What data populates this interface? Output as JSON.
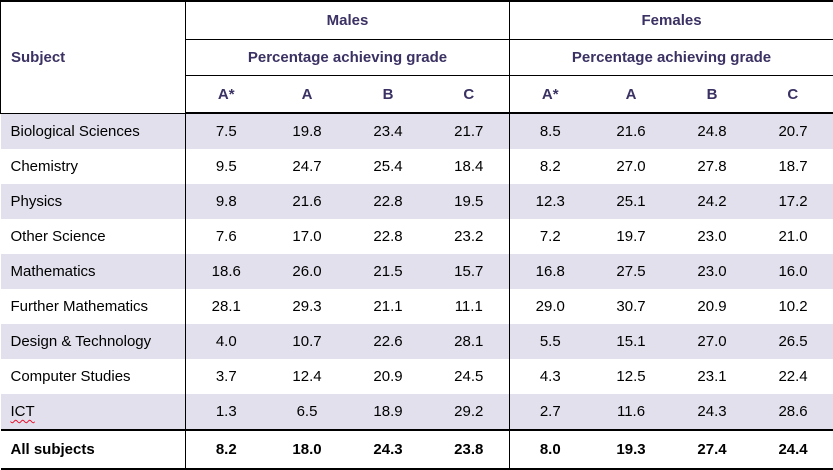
{
  "table": {
    "subject_header": "Subject",
    "male_group": {
      "label": "Males",
      "subheader": "Percentage achieving grade"
    },
    "female_group": {
      "label": "Females",
      "subheader": "Percentage achieving grade"
    },
    "grades": [
      "A*",
      "A",
      "B",
      "C"
    ],
    "rows": [
      {
        "subject": "Biological Sciences",
        "males": [
          "7.5",
          "19.8",
          "23.4",
          "21.7"
        ],
        "females": [
          "8.5",
          "21.6",
          "24.8",
          "20.7"
        ]
      },
      {
        "subject": "Chemistry",
        "males": [
          "9.5",
          "24.7",
          "25.4",
          "18.4"
        ],
        "females": [
          "8.2",
          "27.0",
          "27.8",
          "18.7"
        ]
      },
      {
        "subject": "Physics",
        "males": [
          "9.8",
          "21.6",
          "22.8",
          "19.5"
        ],
        "females": [
          "12.3",
          "25.1",
          "24.2",
          "17.2"
        ]
      },
      {
        "subject": "Other Science",
        "males": [
          "7.6",
          "17.0",
          "22.8",
          "23.2"
        ],
        "females": [
          "7.2",
          "19.7",
          "23.0",
          "21.0"
        ]
      },
      {
        "subject": "Mathematics",
        "males": [
          "18.6",
          "26.0",
          "21.5",
          "15.7"
        ],
        "females": [
          "16.8",
          "27.5",
          "23.0",
          "16.0"
        ]
      },
      {
        "subject": "Further Mathematics",
        "males": [
          "28.1",
          "29.3",
          "21.1",
          "11.1"
        ],
        "females": [
          "29.0",
          "30.7",
          "20.9",
          "10.2"
        ]
      },
      {
        "subject": "Design & Technology",
        "males": [
          "4.0",
          "10.7",
          "22.6",
          "28.1"
        ],
        "females": [
          "5.5",
          "15.1",
          "27.0",
          "26.5"
        ]
      },
      {
        "subject": "Computer Studies",
        "males": [
          "3.7",
          "12.4",
          "20.9",
          "24.5"
        ],
        "females": [
          "4.3",
          "12.5",
          "23.1",
          "22.4"
        ]
      },
      {
        "subject": "ICT",
        "males": [
          "1.3",
          "6.5",
          "18.9",
          "29.2"
        ],
        "females": [
          "2.7",
          "11.6",
          "24.3",
          "28.6"
        ]
      }
    ],
    "totals": {
      "subject": "All subjects",
      "males": [
        "8.2",
        "18.0",
        "24.3",
        "23.8"
      ],
      "females": [
        "8.0",
        "19.3",
        "27.4",
        "24.4"
      ]
    }
  },
  "chart_data": {
    "type": "table",
    "title": "",
    "column_groups": [
      {
        "label": "Males",
        "subheader": "Percentage achieving grade",
        "columns": [
          "A*",
          "A",
          "B",
          "C"
        ]
      },
      {
        "label": "Females",
        "subheader": "Percentage achieving grade",
        "columns": [
          "A*",
          "A",
          "B",
          "C"
        ]
      }
    ],
    "columns": [
      "Subject",
      "Males A*",
      "Males A",
      "Males B",
      "Males C",
      "Females A*",
      "Females A",
      "Females B",
      "Females C"
    ],
    "rows": [
      [
        "Biological Sciences",
        7.5,
        19.8,
        23.4,
        21.7,
        8.5,
        21.6,
        24.8,
        20.7
      ],
      [
        "Chemistry",
        9.5,
        24.7,
        25.4,
        18.4,
        8.2,
        27.0,
        27.8,
        18.7
      ],
      [
        "Physics",
        9.8,
        21.6,
        22.8,
        19.5,
        12.3,
        25.1,
        24.2,
        17.2
      ],
      [
        "Other Science",
        7.6,
        17.0,
        22.8,
        23.2,
        7.2,
        19.7,
        23.0,
        21.0
      ],
      [
        "Mathematics",
        18.6,
        26.0,
        21.5,
        15.7,
        16.8,
        27.5,
        23.0,
        16.0
      ],
      [
        "Further Mathematics",
        28.1,
        29.3,
        21.1,
        11.1,
        29.0,
        30.7,
        20.9,
        10.2
      ],
      [
        "Design & Technology",
        4.0,
        10.7,
        22.6,
        28.1,
        5.5,
        15.1,
        27.0,
        26.5
      ],
      [
        "Computer Studies",
        3.7,
        12.4,
        20.9,
        24.5,
        4.3,
        12.5,
        23.1,
        22.4
      ],
      [
        "ICT",
        1.3,
        6.5,
        18.9,
        29.2,
        2.7,
        11.6,
        24.3,
        28.6
      ],
      [
        "All subjects",
        8.2,
        18.0,
        24.3,
        23.8,
        8.0,
        19.3,
        27.4,
        24.4
      ]
    ]
  },
  "colors": {
    "header_text": "#3B3163",
    "body_text": "#000000",
    "row_shade": "#E2E0EC",
    "border": "#000000",
    "spellcheck_squiggle": "#E8112D"
  }
}
